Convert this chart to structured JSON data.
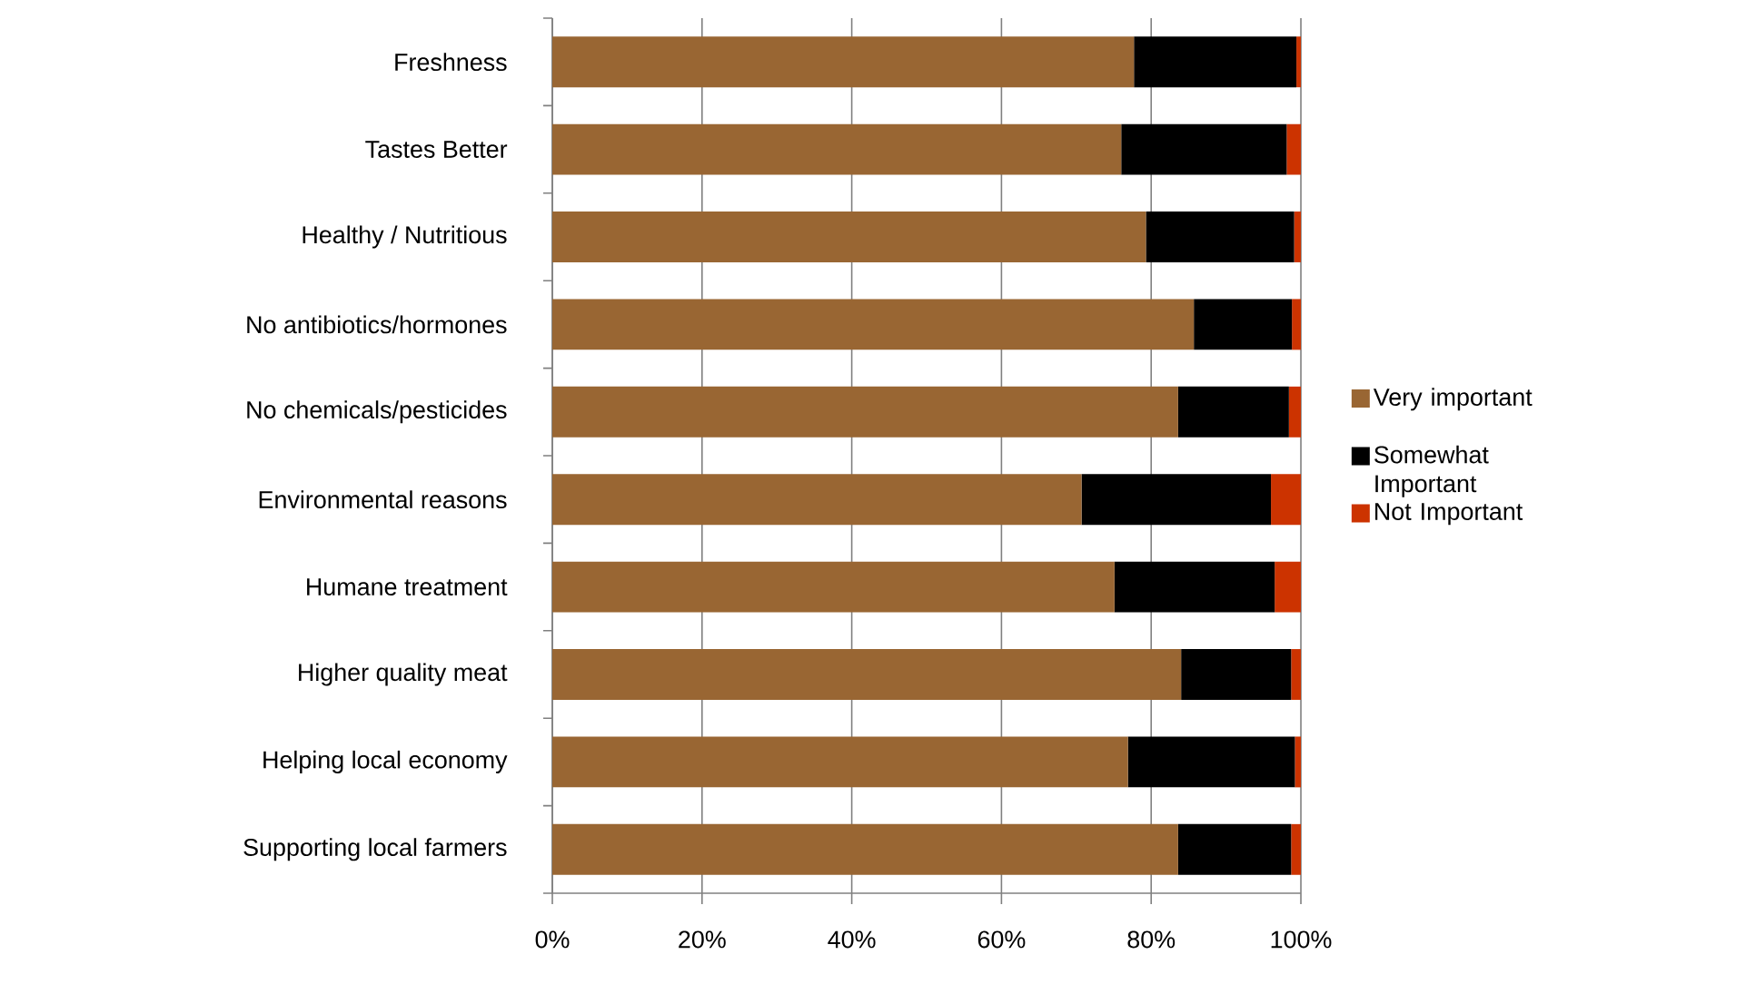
{
  "chart_data": {
    "type": "bar",
    "orientation": "horizontal",
    "stacked": true,
    "grid": "x",
    "legend": "right",
    "categories": [
      "Freshness",
      "Tastes Better",
      "Healthy / Nutritious",
      "No antibiotics/hormones",
      "No chemicals/pesticides",
      "Environmental reasons",
      "Humane treatment",
      "Higher quality meat",
      "Helping local economy",
      "Supporting local farmers"
    ],
    "series": [
      {
        "name": "Very important",
        "color": "#996633",
        "values": [
          77.7,
          76.0,
          79.3,
          85.7,
          83.6,
          70.7,
          75.1,
          84.0,
          76.9,
          83.6
        ]
      },
      {
        "name": "Somewhat Important",
        "color": "#000000",
        "values": [
          21.7,
          22.1,
          19.8,
          13.1,
          14.8,
          25.3,
          21.4,
          14.7,
          22.3,
          15.1
        ]
      },
      {
        "name": "Not Important",
        "color": "#cc3300",
        "values": [
          0.6,
          1.9,
          0.9,
          1.2,
          1.6,
          4.0,
          3.5,
          1.3,
          0.8,
          1.3
        ]
      }
    ],
    "xlim": [
      0,
      100
    ],
    "xticks": [
      {
        "value": 0,
        "label": "0%"
      },
      {
        "value": 20,
        "label": "20%"
      },
      {
        "value": 40,
        "label": "40%"
      },
      {
        "value": 60,
        "label": "60%"
      },
      {
        "value": 80,
        "label": "80%"
      },
      {
        "value": 100,
        "label": "100%"
      }
    ]
  }
}
